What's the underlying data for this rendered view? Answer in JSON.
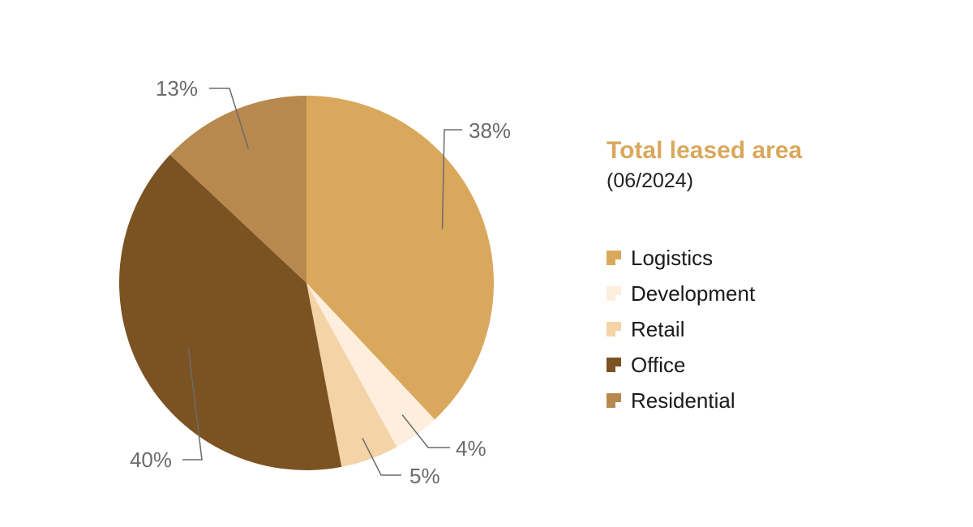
{
  "panel": {
    "title": "Total leased area",
    "subtitle": "(06/2024)"
  },
  "colors": {
    "title": "#d9a85c",
    "label": "#6b6b6b",
    "leader": "#6b6b6b"
  },
  "chart_data": {
    "type": "pie",
    "start_angle_deg": 0,
    "direction": "clockwise",
    "slices": [
      {
        "name": "Logistics",
        "value": 38,
        "label": "38%",
        "color": "#d9a85c"
      },
      {
        "name": "Development",
        "value": 4,
        "label": "4%",
        "color": "#fdeedd"
      },
      {
        "name": "Retail",
        "value": 5,
        "label": "5%",
        "color": "#f4d3a6"
      },
      {
        "name": "Office",
        "value": 40,
        "label": "40%",
        "color": "#7b5222"
      },
      {
        "name": "Residential",
        "value": 13,
        "label": "13%",
        "color": "#b8894f"
      }
    ],
    "legend_position": "right"
  }
}
